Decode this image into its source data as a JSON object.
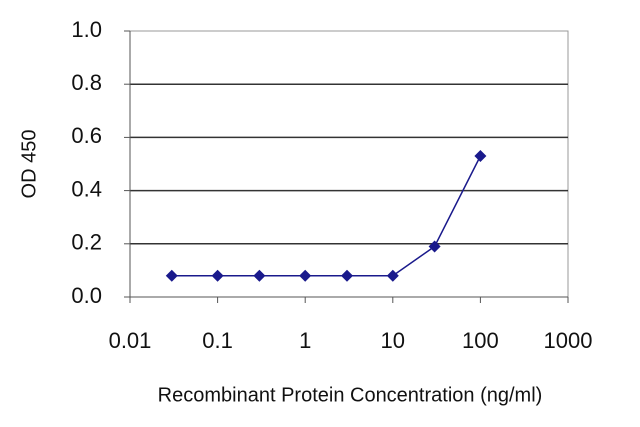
{
  "chart_data": {
    "type": "line",
    "x_label": "Recombinant Protein Concentration (ng/ml)",
    "y_label": "OD 450",
    "x": [
      0.03,
      0.1,
      0.3,
      1,
      3,
      10,
      30,
      100
    ],
    "series": [
      {
        "color": "#1a1a8c",
        "values": [
          0.08,
          0.08,
          0.08,
          0.08,
          0.08,
          0.08,
          0.19,
          0.53
        ]
      }
    ],
    "x_log": true,
    "xlim": [
      0.01,
      1000
    ],
    "xticks": [
      0.01,
      0.1,
      1,
      10,
      100,
      1000
    ],
    "ylim": [
      0,
      1
    ],
    "yticks": [
      {
        "value": 0,
        "label": "0.0"
      },
      {
        "value": 0.2,
        "label": "0.2"
      },
      {
        "value": 0.4,
        "label": "0.4"
      },
      {
        "value": 0.6,
        "label": "0.6"
      },
      {
        "value": 0.8,
        "label": "0.8"
      },
      {
        "value": 1,
        "label": "1.0"
      }
    ],
    "grid": true
  }
}
